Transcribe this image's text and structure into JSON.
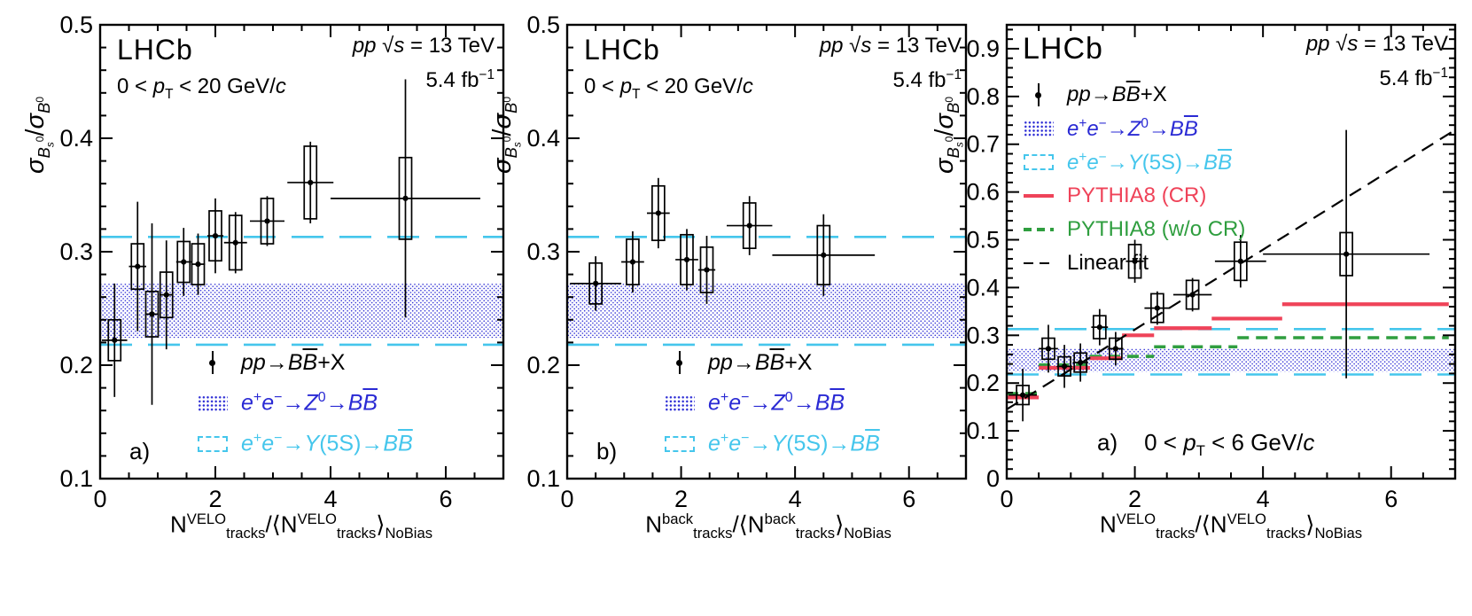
{
  "chart_colors": {
    "z0": "#2a2ad4",
    "y5s": "#45c6ec",
    "cr": "#ef4359",
    "nocr": "#2f9e3f",
    "data": "#000000"
  },
  "chart_data": [
    {
      "id": "a",
      "type": "scatter",
      "title": "LHCb",
      "condition": "0 < *p*_{T} < 20 GeV/*c*",
      "beam": "*pp*   √*s* = 13 TeV",
      "lumi": "5.4 fb^{−1}",
      "panel_label": "a)",
      "xlabel": "N^{VELO}_{tracks}/⟨N^{VELO}_{tracks}⟩_{NoBias}",
      "ylabel": "*σ*_{*B*_{*s*}^{0}}/*σ*_{*B*^{0}}",
      "xlim": [
        0,
        7
      ],
      "ylim": [
        0.1,
        0.5
      ],
      "xticks": [
        0,
        2,
        4,
        6
      ],
      "xtick_labels": [
        "0",
        "2",
        "4",
        "6"
      ],
      "yticks": [
        0.1,
        0.2,
        0.3,
        0.4,
        0.5
      ],
      "ytick_labels": [
        "0.1",
        "0.2",
        "0.3",
        "0.4",
        "0.5"
      ],
      "xminor": 0.5,
      "yminor": 0.02,
      "bands": {
        "z0": [
          0.224,
          0.272
        ],
        "y5s": [
          0.218,
          0.313
        ]
      },
      "points": [
        {
          "x": 0.25,
          "y": 0.222,
          "ey": 0.05,
          "ex": 0.22,
          "sys": 0.018
        },
        {
          "x": 0.65,
          "y": 0.287,
          "ey": 0.057,
          "ex": 0.15,
          "sys": 0.02
        },
        {
          "x": 0.9,
          "y": 0.245,
          "ey": 0.08,
          "ex": 0.12,
          "sys": 0.02
        },
        {
          "x": 1.15,
          "y": 0.262,
          "ey": 0.048,
          "ex": 0.12,
          "sys": 0.02
        },
        {
          "x": 1.45,
          "y": 0.291,
          "ey": 0.03,
          "ex": 0.13,
          "sys": 0.018
        },
        {
          "x": 1.7,
          "y": 0.289,
          "ey": 0.027,
          "ex": 0.12,
          "sys": 0.018
        },
        {
          "x": 2.0,
          "y": 0.314,
          "ey": 0.033,
          "ex": 0.14,
          "sys": 0.022
        },
        {
          "x": 2.35,
          "y": 0.308,
          "ey": 0.027,
          "ex": 0.2,
          "sys": 0.024
        },
        {
          "x": 2.9,
          "y": 0.327,
          "ey": 0.022,
          "ex": 0.3,
          "sys": 0.02
        },
        {
          "x": 3.65,
          "y": 0.361,
          "ey": 0.036,
          "ex": 0.4,
          "sys": 0.032
        },
        {
          "x": 5.3,
          "y": 0.347,
          "ey": 0.105,
          "ex": 1.3,
          "sys": 0.036
        }
      ],
      "legend": [
        {
          "marker": "data",
          "label": "*pp*→*B~B~*+X",
          "color": "#000000"
        },
        {
          "marker": "z0",
          "label": "*e*^{+}*e*^{−}→*Z*^{0}→*B~B~*",
          "color": "#2a2ad4"
        },
        {
          "marker": "y5s",
          "label": "*e*^{+}*e*^{−}→*Y*(5S)→*B~B~*",
          "color": "#45c6ec"
        }
      ]
    },
    {
      "id": "b",
      "type": "scatter",
      "title": "LHCb",
      "condition": "0 < *p*_{T} < 20 GeV/*c*",
      "beam": "*pp*   √*s* = 13 TeV",
      "lumi": "5.4 fb^{−1}",
      "panel_label": "b)",
      "xlabel": "N^{back}_{tracks}/⟨N^{back}_{tracks}⟩_{NoBias}",
      "ylabel": "*σ*_{*B*_{*s*}^{0}}/*σ*_{*B*^{0}}",
      "xlim": [
        0,
        7
      ],
      "ylim": [
        0.1,
        0.5
      ],
      "xticks": [
        0,
        2,
        4,
        6
      ],
      "xtick_labels": [
        "0",
        "2",
        "4",
        "6"
      ],
      "yticks": [
        0.1,
        0.2,
        0.3,
        0.4,
        0.5
      ],
      "ytick_labels": [
        "0.1",
        "0.2",
        "0.3",
        "0.4",
        "0.5"
      ],
      "xminor": 0.5,
      "yminor": 0.02,
      "bands": {
        "z0": [
          0.224,
          0.272
        ],
        "y5s": [
          0.218,
          0.313
        ]
      },
      "points": [
        {
          "x": 0.5,
          "y": 0.272,
          "ey": 0.024,
          "ex": 0.45,
          "sys": 0.018
        },
        {
          "x": 1.15,
          "y": 0.291,
          "ey": 0.027,
          "ex": 0.2,
          "sys": 0.02
        },
        {
          "x": 1.6,
          "y": 0.334,
          "ey": 0.031,
          "ex": 0.2,
          "sys": 0.024
        },
        {
          "x": 2.1,
          "y": 0.293,
          "ey": 0.027,
          "ex": 0.2,
          "sys": 0.022
        },
        {
          "x": 2.45,
          "y": 0.284,
          "ey": 0.03,
          "ex": 0.15,
          "sys": 0.02
        },
        {
          "x": 3.2,
          "y": 0.323,
          "ey": 0.026,
          "ex": 0.4,
          "sys": 0.02
        },
        {
          "x": 4.5,
          "y": 0.297,
          "ey": 0.036,
          "ex": 0.9,
          "sys": 0.026
        }
      ],
      "legend": [
        {
          "marker": "data",
          "label": "*pp*→*B~B~*+X",
          "color": "#000000"
        },
        {
          "marker": "z0",
          "label": "*e*^{+}*e*^{−}→*Z*^{0}→*B~B~*",
          "color": "#2a2ad4"
        },
        {
          "marker": "y5s",
          "label": "*e*^{+}*e*^{−}→*Y*(5S)→*B~B~*",
          "color": "#45c6ec"
        }
      ]
    },
    {
      "id": "c",
      "type": "scatter",
      "title": "LHCb",
      "condition": "0 < *p*_{T} < 6 GeV/*c*",
      "beam": "*pp*   √*s* = 13 TeV",
      "lumi": "5.4 fb^{−1}",
      "panel_label": "a)",
      "xlabel": "N^{VELO}_{tracks}/⟨N^{VELO}_{tracks}⟩_{NoBias}",
      "ylabel": "*σ*_{*B*_{*s*}^{0}}/*σ*_{*B*^{0}}",
      "xlim": [
        0,
        7
      ],
      "ylim": [
        0,
        0.95
      ],
      "xticks": [
        0,
        2,
        4,
        6
      ],
      "xtick_labels": [
        "0",
        "2",
        "4",
        "6"
      ],
      "yticks": [
        0,
        0.1,
        0.2,
        0.3,
        0.4,
        0.5,
        0.6,
        0.7,
        0.8,
        0.9
      ],
      "ytick_labels": [
        "0",
        "0.1",
        "0.2",
        "0.3",
        "0.4",
        "0.5",
        "0.6",
        "0.7",
        "0.8",
        "0.9"
      ],
      "xminor": 0.5,
      "yminor": 0.02,
      "bands": {
        "z0": [
          0.224,
          0.272
        ],
        "y5s": [
          0.218,
          0.313
        ]
      },
      "fit": {
        "x0": 0,
        "y0": 0.145,
        "x1": 7,
        "y1": 0.73
      },
      "pythia_cr": [
        [
          0.0,
          0.5,
          0.17
        ],
        [
          0.5,
          1.3,
          0.232
        ],
        [
          1.3,
          1.8,
          0.252
        ],
        [
          1.8,
          2.3,
          0.3
        ],
        [
          2.3,
          3.2,
          0.315
        ],
        [
          3.2,
          4.3,
          0.335
        ],
        [
          4.3,
          6.9,
          0.365
        ]
      ],
      "pythia_nocr": [
        [
          0.0,
          0.5,
          0.178
        ],
        [
          0.5,
          1.3,
          0.238
        ],
        [
          1.3,
          2.3,
          0.256
        ],
        [
          2.3,
          3.6,
          0.276
        ],
        [
          3.6,
          6.9,
          0.295
        ]
      ],
      "points": [
        {
          "x": 0.25,
          "y": 0.175,
          "ey": 0.055,
          "ex": 0.22,
          "sys": 0.02
        },
        {
          "x": 0.65,
          "y": 0.272,
          "ey": 0.05,
          "ex": 0.15,
          "sys": 0.022
        },
        {
          "x": 0.9,
          "y": 0.235,
          "ey": 0.045,
          "ex": 0.12,
          "sys": 0.02
        },
        {
          "x": 1.15,
          "y": 0.243,
          "ey": 0.04,
          "ex": 0.12,
          "sys": 0.02
        },
        {
          "x": 1.45,
          "y": 0.317,
          "ey": 0.038,
          "ex": 0.13,
          "sys": 0.024
        },
        {
          "x": 1.7,
          "y": 0.272,
          "ey": 0.035,
          "ex": 0.12,
          "sys": 0.022
        },
        {
          "x": 2.0,
          "y": 0.455,
          "ey": 0.045,
          "ex": 0.14,
          "sys": 0.035
        },
        {
          "x": 2.35,
          "y": 0.357,
          "ey": 0.035,
          "ex": 0.2,
          "sys": 0.03
        },
        {
          "x": 2.9,
          "y": 0.385,
          "ey": 0.035,
          "ex": 0.3,
          "sys": 0.03
        },
        {
          "x": 3.65,
          "y": 0.455,
          "ey": 0.055,
          "ex": 0.4,
          "sys": 0.04
        },
        {
          "x": 5.3,
          "y": 0.47,
          "ey": 0.26,
          "ex": 1.3,
          "sys": 0.045
        }
      ],
      "legend": [
        {
          "marker": "data",
          "label": "*pp*→*B~B~*+X",
          "color": "#000000"
        },
        {
          "marker": "z0",
          "label": "*e*^{+}*e*^{−}→*Z*^{0}→*B~B~*",
          "color": "#2a2ad4"
        },
        {
          "marker": "y5s",
          "label": "*e*^{+}*e*^{−}→*Y*(5S)→*B~B~*",
          "color": "#45c6ec"
        },
        {
          "marker": "cr",
          "label": "PYTHIA8 (CR)",
          "color": "#ef4359"
        },
        {
          "marker": "nocr",
          "label": "PYTHIA8 (w/o CR)",
          "color": "#2f9e3f"
        },
        {
          "marker": "fit",
          "label": "Linear fit",
          "color": "#000000"
        }
      ]
    }
  ]
}
